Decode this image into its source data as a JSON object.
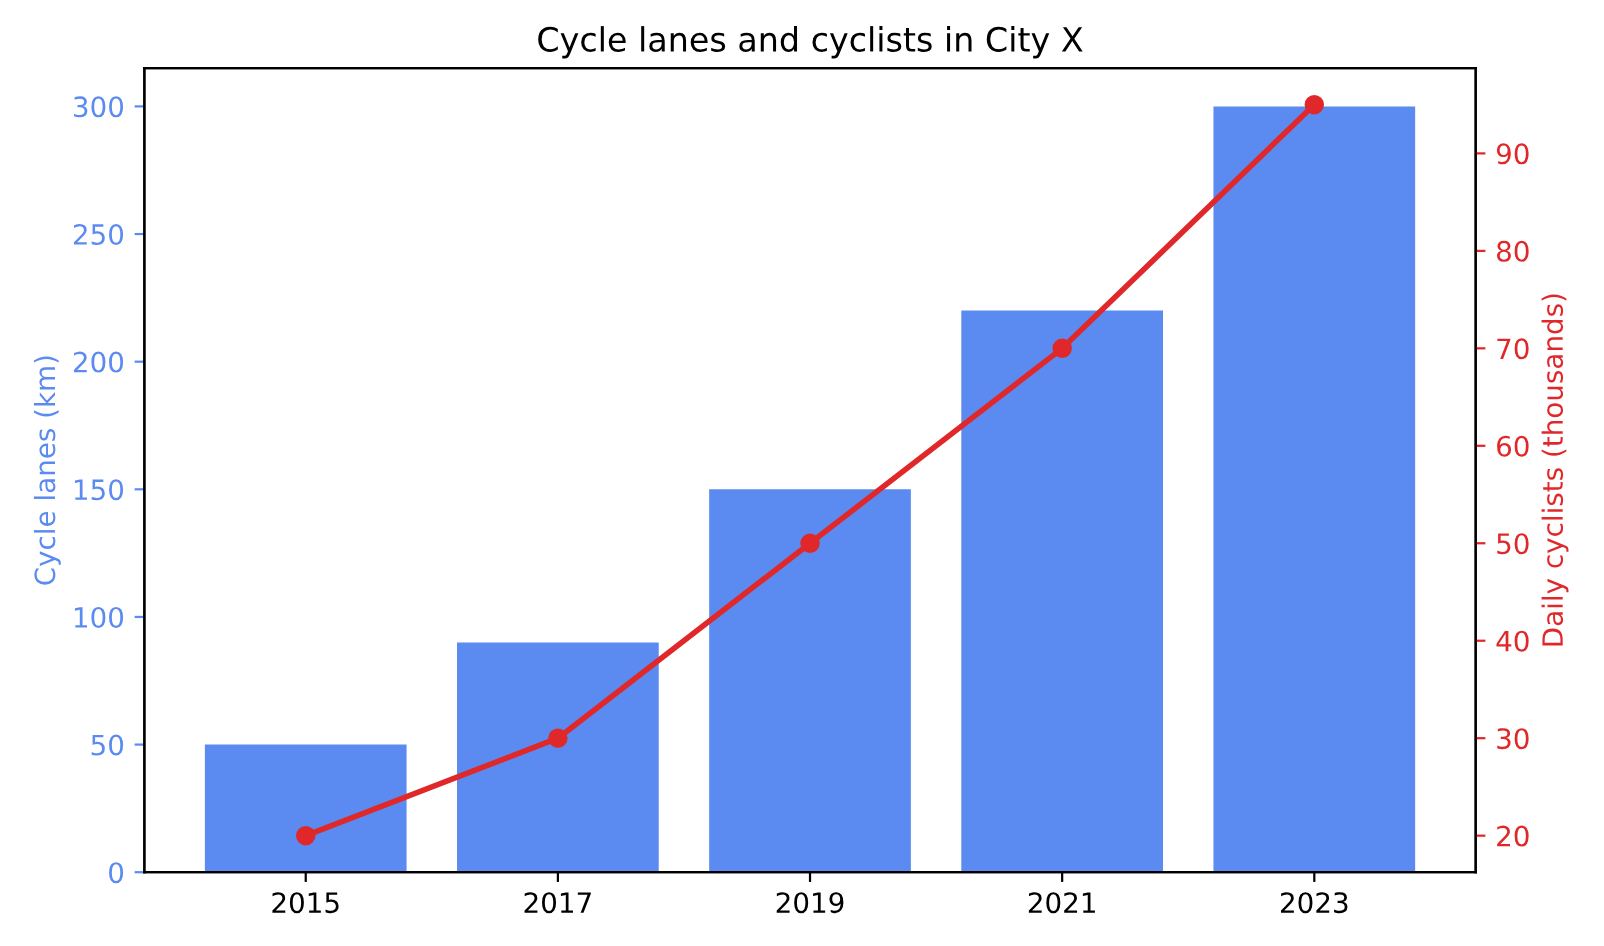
{
  "chart_data": {
    "type": "bar",
    "title": "Cycle lanes and cyclists in City X",
    "categories": [
      "2015",
      "2017",
      "2019",
      "2021",
      "2023"
    ],
    "ylabel": "Cycle lanes (km)",
    "y2label": "Daily cyclists (thousands)",
    "series": [
      {
        "color": "#5b8bf0",
        "values": [
          50,
          90,
          150,
          220,
          300
        ]
      },
      {
        "type": "line",
        "axis": "y2",
        "color": "#e0282a",
        "marker": "circle",
        "values": [
          20,
          30,
          50,
          70,
          95
        ]
      }
    ],
    "ylim": [
      0,
      315
    ],
    "yticks": [
      0,
      50,
      100,
      150,
      200,
      250,
      300
    ],
    "y2lim": [
      16.25,
      98.75
    ],
    "y2ticks": [
      20,
      30,
      40,
      50,
      60,
      70,
      80,
      90
    ],
    "grid": false,
    "legend": false
  }
}
